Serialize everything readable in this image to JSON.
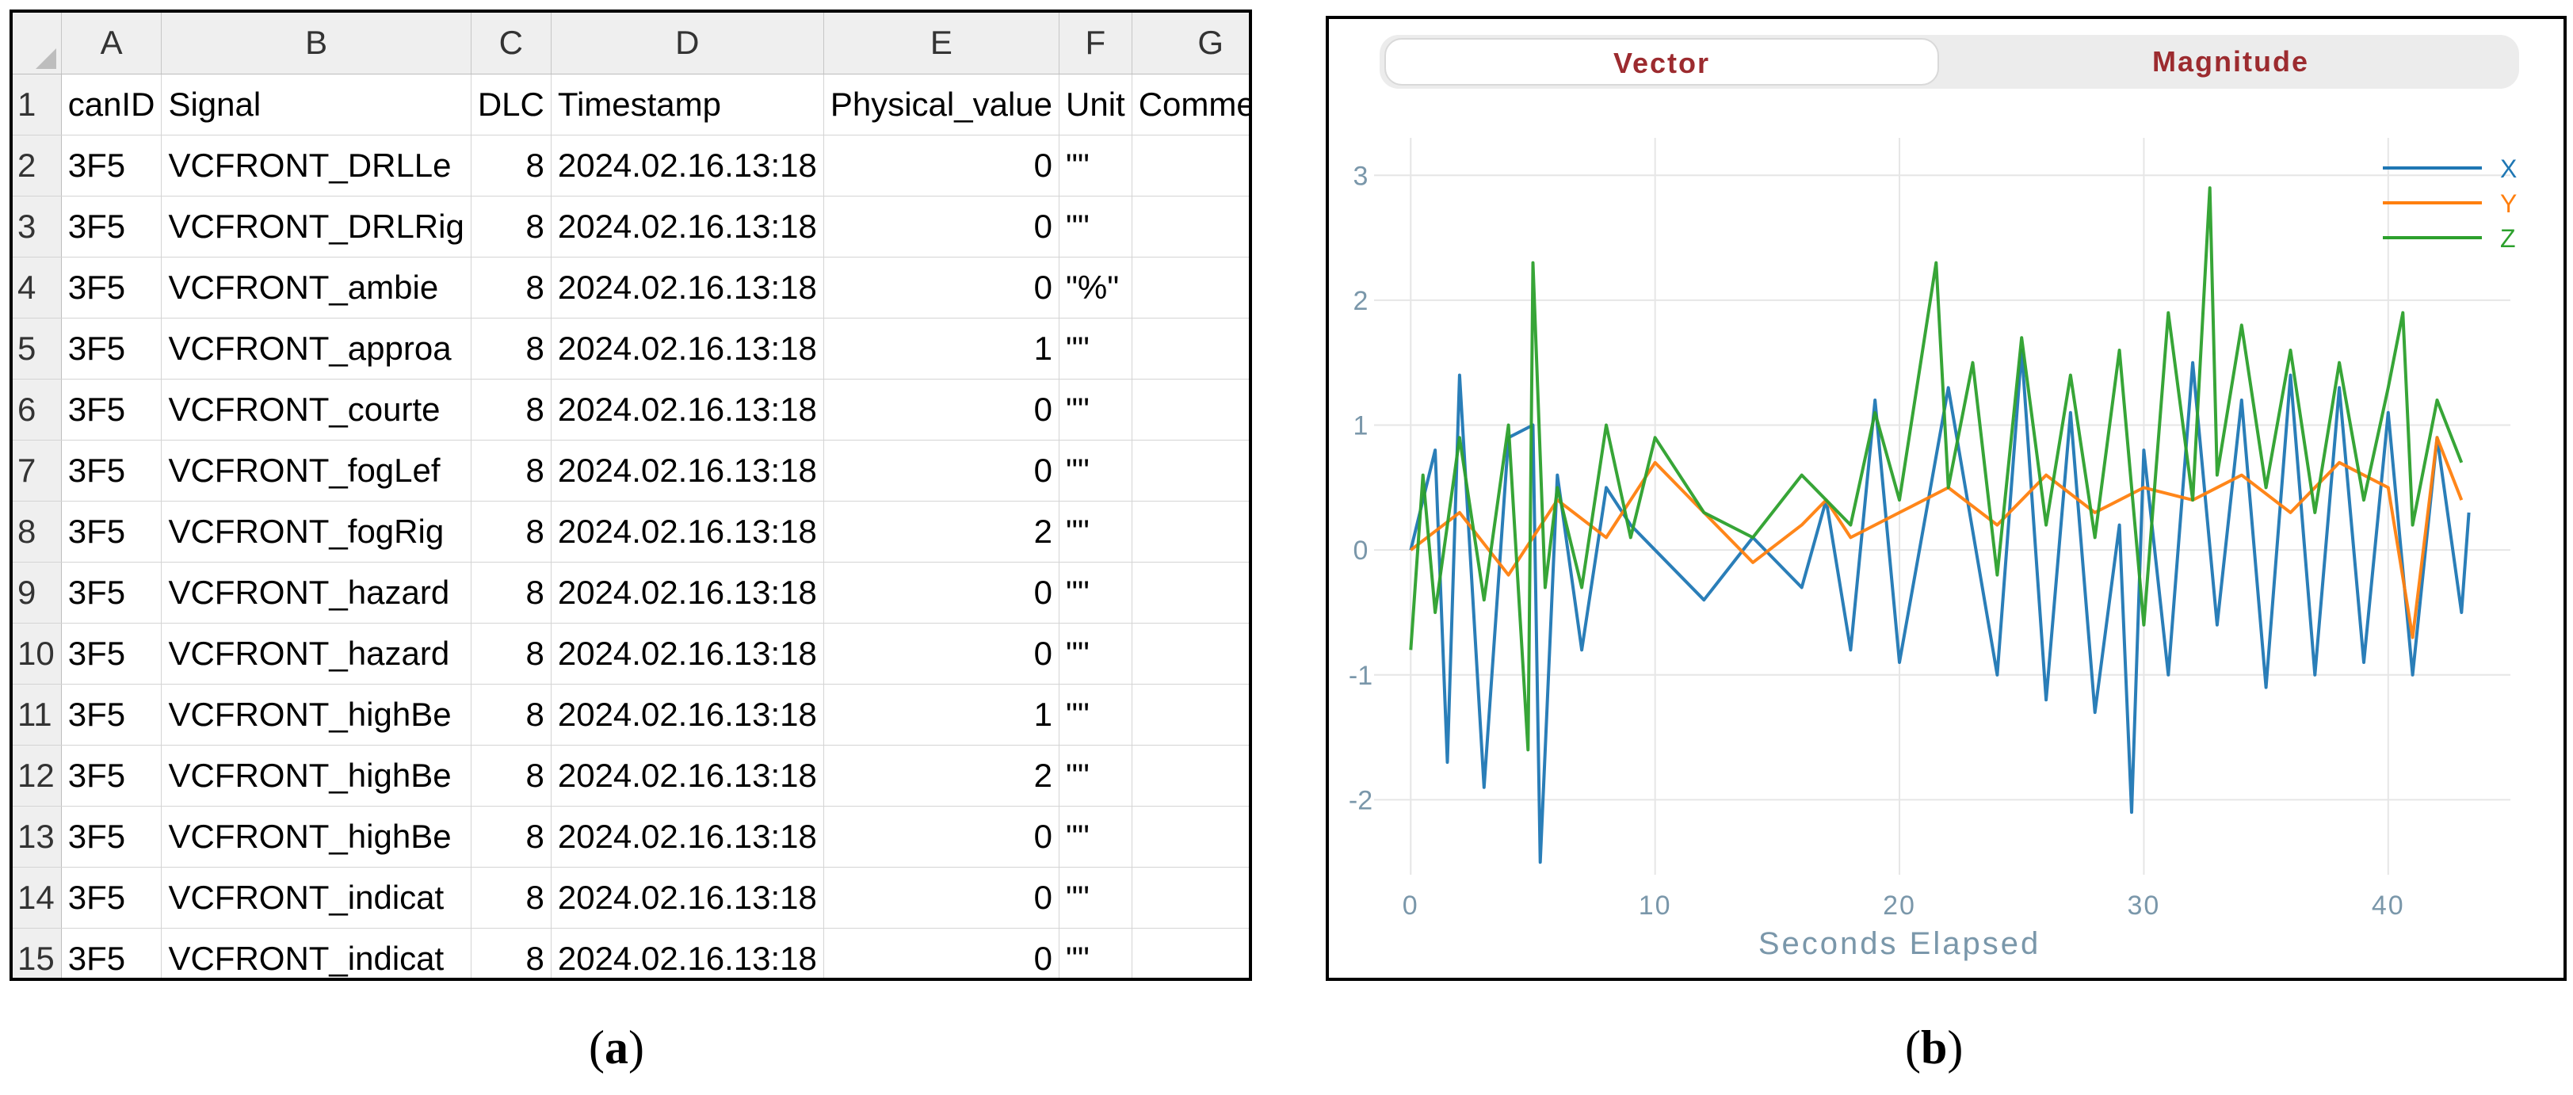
{
  "spreadsheet": {
    "column_letters": [
      "A",
      "B",
      "C",
      "D",
      "E",
      "F",
      "G"
    ],
    "header_row": {
      "row_number": "1",
      "cells": [
        "canID",
        "Signal",
        "DLC",
        "Timestamp",
        "Physical_value",
        "Unit",
        "Comment"
      ]
    },
    "rows": [
      {
        "row_number": "2",
        "canID": "3F5",
        "signal": "VCFRONT_DRLLe",
        "dlc": "8",
        "timestamp": "2024.02.16.13:18",
        "value": "0",
        "unit": "\"\""
      },
      {
        "row_number": "3",
        "canID": "3F5",
        "signal": "VCFRONT_DRLRig",
        "dlc": "8",
        "timestamp": "2024.02.16.13:18",
        "value": "0",
        "unit": "\"\""
      },
      {
        "row_number": "4",
        "canID": "3F5",
        "signal": "VCFRONT_ambie",
        "dlc": "8",
        "timestamp": "2024.02.16.13:18",
        "value": "0",
        "unit": "\"%\""
      },
      {
        "row_number": "5",
        "canID": "3F5",
        "signal": "VCFRONT_approa",
        "dlc": "8",
        "timestamp": "2024.02.16.13:18",
        "value": "1",
        "unit": "\"\""
      },
      {
        "row_number": "6",
        "canID": "3F5",
        "signal": "VCFRONT_courte",
        "dlc": "8",
        "timestamp": "2024.02.16.13:18",
        "value": "0",
        "unit": "\"\""
      },
      {
        "row_number": "7",
        "canID": "3F5",
        "signal": "VCFRONT_fogLef",
        "dlc": "8",
        "timestamp": "2024.02.16.13:18",
        "value": "0",
        "unit": "\"\""
      },
      {
        "row_number": "8",
        "canID": "3F5",
        "signal": "VCFRONT_fogRig",
        "dlc": "8",
        "timestamp": "2024.02.16.13:18",
        "value": "2",
        "unit": "\"\""
      },
      {
        "row_number": "9",
        "canID": "3F5",
        "signal": "VCFRONT_hazard",
        "dlc": "8",
        "timestamp": "2024.02.16.13:18",
        "value": "0",
        "unit": "\"\""
      },
      {
        "row_number": "10",
        "canID": "3F5",
        "signal": "VCFRONT_hazard",
        "dlc": "8",
        "timestamp": "2024.02.16.13:18",
        "value": "0",
        "unit": "\"\""
      },
      {
        "row_number": "11",
        "canID": "3F5",
        "signal": "VCFRONT_highBe",
        "dlc": "8",
        "timestamp": "2024.02.16.13:18",
        "value": "1",
        "unit": "\"\""
      },
      {
        "row_number": "12",
        "canID": "3F5",
        "signal": "VCFRONT_highBe",
        "dlc": "8",
        "timestamp": "2024.02.16.13:18",
        "value": "2",
        "unit": "\"\""
      },
      {
        "row_number": "13",
        "canID": "3F5",
        "signal": "VCFRONT_highBe",
        "dlc": "8",
        "timestamp": "2024.02.16.13:18",
        "value": "0",
        "unit": "\"\""
      },
      {
        "row_number": "14",
        "canID": "3F5",
        "signal": "VCFRONT_indicat",
        "dlc": "8",
        "timestamp": "2024.02.16.13:18",
        "value": "0",
        "unit": "\"\""
      },
      {
        "row_number": "15",
        "canID": "3F5",
        "signal": "VCFRONT_indicat",
        "dlc": "8",
        "timestamp": "2024.02.16.13:18",
        "value": "0",
        "unit": "\"\""
      }
    ]
  },
  "viewer": {
    "tabs": [
      {
        "label": "Vector",
        "active": true
      },
      {
        "label": "Magnitude",
        "active": false
      }
    ],
    "accent_color": "#9c2b2f"
  },
  "captions": {
    "a": "a",
    "b": "b"
  },
  "chart_data": {
    "type": "line",
    "xlabel": "Seconds Elapsed",
    "ylabel": "",
    "xlim": [
      -1.5,
      45
    ],
    "ylim": [
      -2.6,
      3.3
    ],
    "x_ticks": [
      0,
      10,
      20,
      30,
      40
    ],
    "y_ticks": [
      3,
      2,
      1,
      0,
      -1,
      -2
    ],
    "grid": true,
    "legend_position": "top-right",
    "series": [
      {
        "name": "X",
        "color": "#1f77b4",
        "x": [
          0,
          1,
          1.5,
          2,
          3,
          4,
          5,
          5.3,
          6,
          7,
          8,
          9,
          10,
          12,
          14,
          16,
          17,
          18,
          19,
          20,
          22,
          24,
          25,
          26,
          27,
          28,
          29,
          29.5,
          30,
          31,
          32,
          33,
          34,
          35,
          36,
          37,
          38,
          39,
          40,
          41,
          42,
          43,
          43.3
        ],
        "values": [
          0,
          0.8,
          -1.7,
          1.4,
          -1.9,
          0.9,
          1.0,
          -2.5,
          0.6,
          -0.8,
          0.5,
          0.2,
          0.0,
          -0.4,
          0.1,
          -0.3,
          0.4,
          -0.8,
          1.2,
          -0.9,
          1.3,
          -1.0,
          1.6,
          -1.2,
          1.1,
          -1.3,
          0.2,
          -2.1,
          0.8,
          -1.0,
          1.5,
          -0.6,
          1.2,
          -1.1,
          1.4,
          -1.0,
          1.3,
          -0.9,
          1.1,
          -1.0,
          0.9,
          -0.5,
          0.3
        ]
      },
      {
        "name": "Y",
        "color": "#ff7f0e",
        "x": [
          0,
          2,
          4,
          6,
          8,
          10,
          11,
          12,
          14,
          16,
          17,
          18,
          20,
          22,
          24,
          26,
          28,
          30,
          32,
          34,
          36,
          38,
          40,
          41,
          42,
          43
        ],
        "values": [
          0,
          0.3,
          -0.2,
          0.4,
          0.1,
          0.7,
          0.5,
          0.3,
          -0.1,
          0.2,
          0.4,
          0.1,
          0.3,
          0.5,
          0.2,
          0.6,
          0.3,
          0.5,
          0.4,
          0.6,
          0.3,
          0.7,
          0.5,
          -0.7,
          0.9,
          0.4
        ]
      },
      {
        "name": "Z",
        "color": "#2ca02c",
        "x": [
          0,
          0.5,
          1,
          2,
          3,
          4,
          4.8,
          5,
          5.5,
          6,
          7,
          8,
          9,
          10,
          12,
          14,
          16,
          18,
          19,
          20,
          21.5,
          22,
          23,
          24,
          25,
          26,
          27,
          28,
          29,
          30,
          31,
          32,
          32.7,
          33,
          34,
          35,
          36,
          37,
          38,
          39,
          40,
          40.6,
          41,
          42,
          43
        ],
        "values": [
          -0.8,
          0.6,
          -0.5,
          0.9,
          -0.4,
          1.0,
          -1.6,
          2.3,
          -0.3,
          0.5,
          -0.3,
          1.0,
          0.1,
          0.9,
          0.3,
          0.1,
          0.6,
          0.2,
          1.1,
          0.4,
          2.3,
          0.5,
          1.5,
          -0.2,
          1.7,
          0.2,
          1.4,
          0.1,
          1.6,
          -0.6,
          1.9,
          0.4,
          2.9,
          0.6,
          1.8,
          0.5,
          1.6,
          0.3,
          1.5,
          0.4,
          1.3,
          1.9,
          0.2,
          1.2,
          0.7
        ]
      }
    ]
  }
}
